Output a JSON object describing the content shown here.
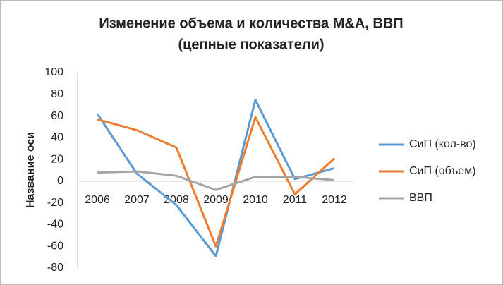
{
  "chart_data": {
    "type": "line",
    "title": [
      "Изменение объема и количества M&A, ВВП",
      "(цепные показатели)"
    ],
    "y_label": "Название оси",
    "categories": [
      "2006",
      "2007",
      "2008",
      "2009",
      "2010",
      "2011",
      "2012"
    ],
    "series": [
      {
        "name": "СиП (кол-во)",
        "color": "#5b9bd5",
        "values": [
          62,
          7,
          -22,
          -69,
          75,
          2,
          12
        ]
      },
      {
        "name": "СиП (объем)",
        "color": "#ed7d31",
        "values": [
          57,
          47,
          31,
          -60,
          59,
          -12,
          21
        ]
      },
      {
        "name": "ВВП",
        "color": "#a5a5a5",
        "values": [
          8,
          9,
          5,
          -8,
          4,
          4,
          1
        ]
      }
    ],
    "ylim": [
      -80,
      100
    ],
    "yticks": [
      -80,
      -60,
      -40,
      -20,
      0,
      20,
      40,
      60,
      80,
      100
    ],
    "grid": false,
    "legend": "right"
  }
}
